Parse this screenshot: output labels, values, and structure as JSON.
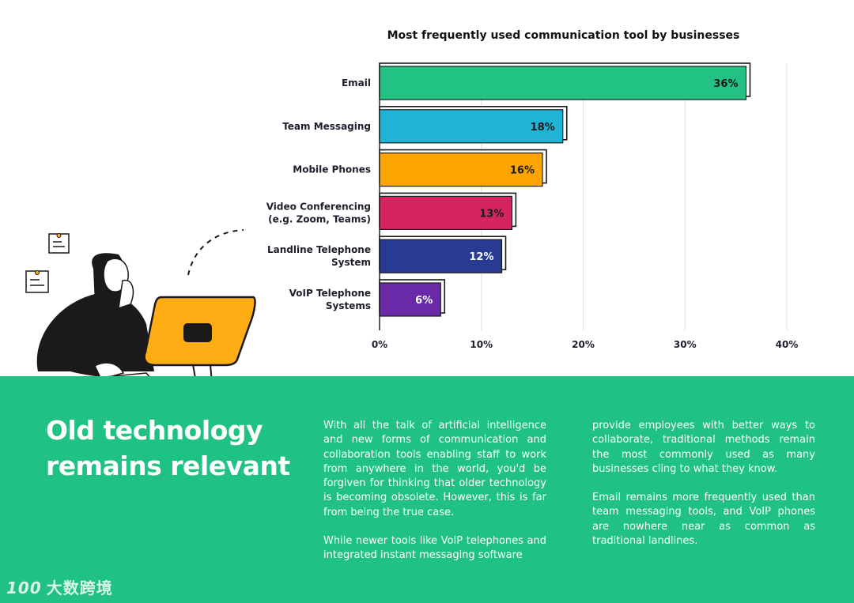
{
  "chart_data": {
    "type": "bar",
    "orientation": "horizontal",
    "title": "Most frequently used communication tool by businesses",
    "categories": [
      [
        "Email"
      ],
      [
        "Team Messaging"
      ],
      [
        "Mobile Phones"
      ],
      [
        "Video Conferencing",
        "(e.g. Zoom, Teams)"
      ],
      [
        "Landline Telephone",
        "System"
      ],
      [
        "VoIP Telephone",
        "Systems"
      ]
    ],
    "values": [
      36,
      18,
      16,
      13,
      12,
      6
    ],
    "value_labels": [
      "36%",
      "18%",
      "16%",
      "13%",
      "12%",
      "6%"
    ],
    "bar_colors": [
      "#22c285",
      "#1fb4d6",
      "#ffa502",
      "#d6245f",
      "#283a94",
      "#6a2aa8"
    ],
    "value_label_colors": [
      "#1a1a1a",
      "#1a1a1a",
      "#1a1a1a",
      "#1a1a1a",
      "#ffffff",
      "#ffffff"
    ],
    "xlim": [
      0,
      40
    ],
    "x_ticks": [
      0,
      10,
      20,
      30,
      40
    ],
    "x_tick_labels": [
      "0%",
      "10%",
      "20%",
      "30%",
      "40%"
    ],
    "grid": true,
    "xlabel": "",
    "ylabel": ""
  },
  "headline": "Old technology remains relevant",
  "body": {
    "col1_p1": "With all the talk of artificial intelligence and new forms of communication and collaboration tools enabling staff to work from anywhere in the world, you'd be forgiven for thinking that older technology is becoming obsolete. However, this is far from being the true case.",
    "col1_p2": "While newer tools like VoIP telephones and integrated instant messaging software",
    "col2_p1": "provide employees with better ways to collaborate, traditional methods remain the most commonly used as many businesses cling to what they know.",
    "col2_p2": "Email remains more frequently used than team messaging tools, and VoIP phones are nowhere near as common as traditional landlines."
  },
  "logo": {
    "number": "100",
    "text": "大数跨境"
  },
  "colors": {
    "panel_green": "#20c184",
    "monitor_orange": "#ffad14",
    "ink": "#1a1a1a"
  },
  "icons": [
    "note-icon",
    "note-icon",
    "woman-at-computer-illustration"
  ]
}
